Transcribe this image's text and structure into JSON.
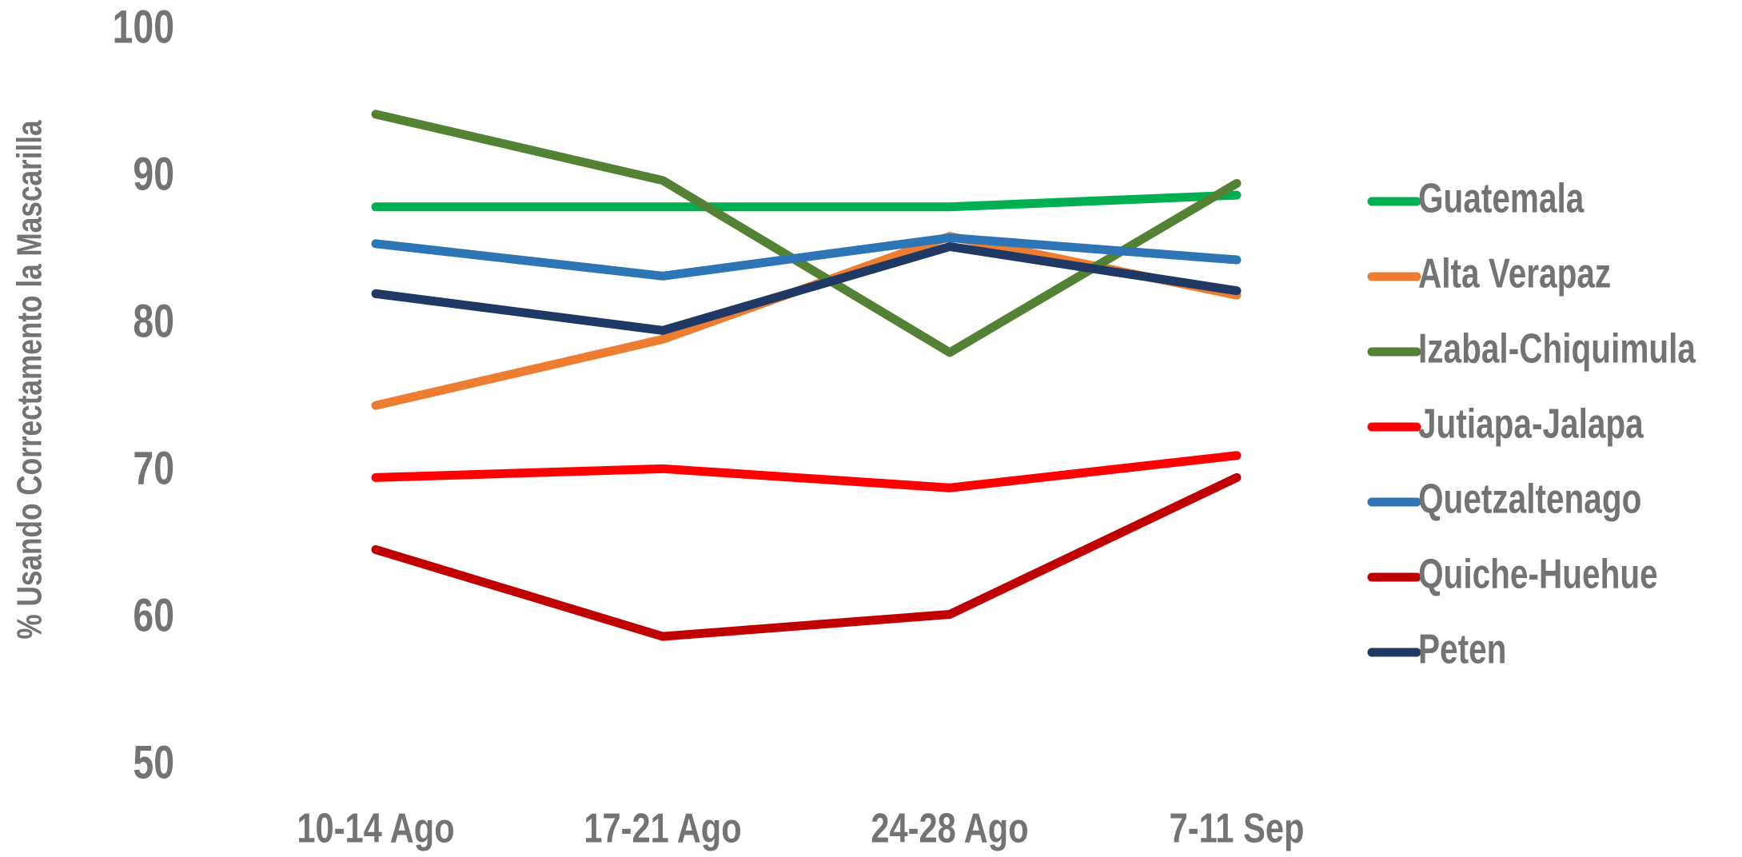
{
  "chart_data": {
    "type": "line",
    "ylabel": "% Usando Correctamento la Mascarilla",
    "categories": [
      "10-14 Ago",
      "17-21 Ago",
      "24-28 Ago",
      "7-11 Sep"
    ],
    "ylim": [
      50,
      100
    ],
    "yticks": [
      50,
      60,
      70,
      80,
      90,
      100
    ],
    "grid": false,
    "legend": "right",
    "series": [
      {
        "name": "Guatemala",
        "color": "#00b050",
        "values": [
          88,
          88,
          88,
          88.8
        ]
      },
      {
        "name": "Alta Verapaz",
        "color": "#ed7d31",
        "values": [
          74.5,
          79,
          86,
          82
        ]
      },
      {
        "name": "Izabal-Chiquimula",
        "color": "#548235",
        "values": [
          94.3,
          89.8,
          78.1,
          89.6
        ]
      },
      {
        "name": "Jutiapa-Jalapa",
        "color": "#ff0000",
        "values": [
          69.6,
          70.2,
          68.9,
          71.1
        ]
      },
      {
        "name": "Quetzaltenago",
        "color": "#2e75b6",
        "values": [
          85.5,
          83.3,
          85.9,
          84.4
        ]
      },
      {
        "name": "Quiche-Huehue",
        "color": "#c00000",
        "values": [
          64.7,
          58.8,
          60.3,
          69.6
        ]
      },
      {
        "name": "Peten",
        "color": "#1f3864",
        "values": [
          82.1,
          79.6,
          85.3,
          82.3
        ]
      }
    ]
  }
}
